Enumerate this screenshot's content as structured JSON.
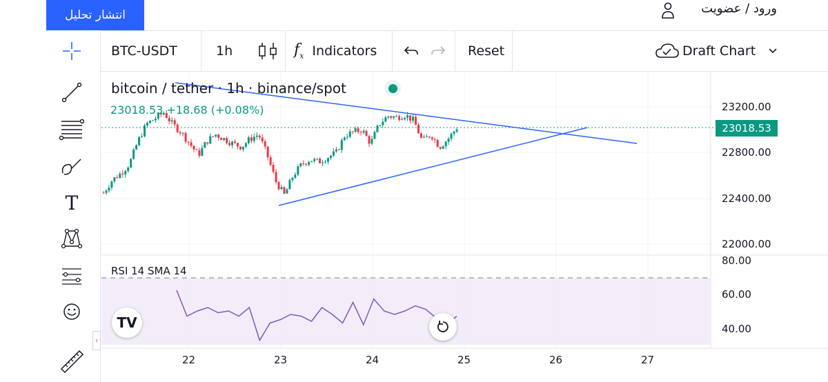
{
  "header": {
    "publish_label": "انتشار تحلیل",
    "login_label": "ورود / عضویت"
  },
  "toolbar": {
    "symbol": "BTC-USDT",
    "interval": "1h",
    "indicators_label": "Indicators",
    "reset_label": "Reset",
    "draft_label": "Draft Chart"
  },
  "legend": {
    "title": "bitcoin / tether · 1h · binance/spot",
    "price": "23018.53 +18.68 (+0.08%)"
  },
  "colors": {
    "up": "#089981",
    "down": "#f23645",
    "drawing": "#2962ff",
    "rsi": "#7e57c2",
    "rsi_band": "#ede7f6"
  },
  "yaxis": {
    "labels": [
      "23200.00",
      "22800.00",
      "22400.00",
      "22000.00"
    ],
    "current_price": "23018.53"
  },
  "rsi": {
    "label": "RSI 14 SMA 14",
    "labels": [
      "80.00",
      "60.00",
      "40.00"
    ]
  },
  "xaxis": {
    "labels": [
      "22",
      "23",
      "24",
      "25",
      "26",
      "27"
    ]
  },
  "chart_data": {
    "type": "candlestick",
    "symbol": "BTC-USDT",
    "interval": "1h",
    "last_price": 23018.53,
    "change": 18.68,
    "change_pct": 0.08,
    "y_ticks": [
      23200,
      22800,
      22400,
      22000
    ],
    "x_ticks": [
      "22",
      "23",
      "24",
      "25",
      "26",
      "27"
    ],
    "close_path": [
      22450,
      22560,
      22620,
      22700,
      22900,
      23050,
      23100,
      23150,
      23050,
      22980,
      22880,
      22780,
      22900,
      22960,
      22920,
      22880,
      22850,
      22920,
      22960,
      22780,
      22550,
      22430,
      22600,
      22700,
      22740,
      22720,
      22760,
      22800,
      22950,
      22980,
      23000,
      22880,
      23050,
      23120,
      23110,
      23130,
      23080,
      22900,
      22960,
      22850,
      22920,
      23018
    ],
    "rsi_path": [
      62,
      47,
      50,
      52,
      49,
      50,
      47,
      52,
      33,
      43,
      45,
      48,
      47,
      44,
      52,
      48,
      43,
      55,
      42,
      57,
      50,
      48,
      50,
      53,
      51,
      46,
      42,
      47
    ]
  }
}
